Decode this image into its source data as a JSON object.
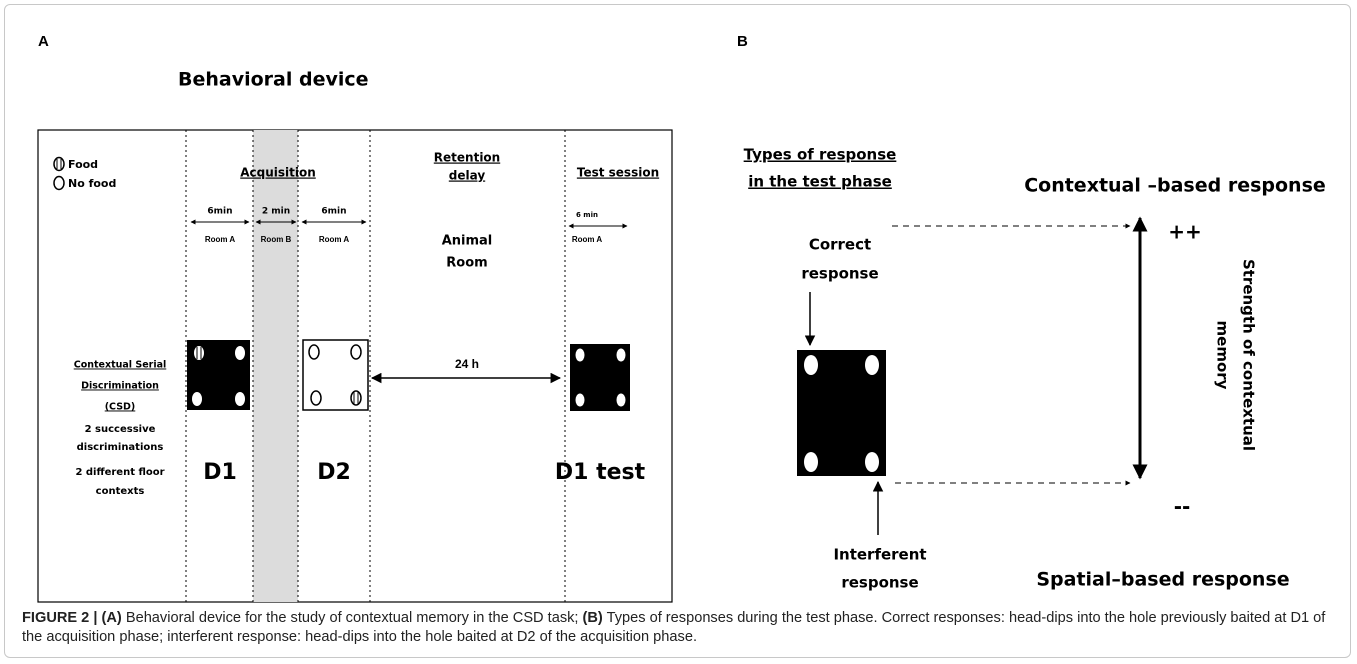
{
  "panel_a": {
    "label": "A",
    "title": "Behavioral device",
    "legend": [
      "Food",
      "No food"
    ],
    "acquisition": "Acquisition",
    "retention": [
      "Retention",
      "delay"
    ],
    "test_session": "Test session",
    "durations": [
      {
        "time": "6min",
        "room": "Room A"
      },
      {
        "time": "2 min",
        "room": "Room B"
      },
      {
        "time": "6min",
        "room": "Room A"
      },
      {
        "time": "6 min",
        "room": "Room A"
      }
    ],
    "animal_room": [
      "Animal",
      "Room"
    ],
    "delay": "24 h",
    "method": [
      "Contextual Serial",
      "Discrimination",
      "(CSD)"
    ],
    "notes": [
      "2 successive",
      "discriminations",
      "2 different floor",
      "contexts"
    ],
    "days": [
      "D1",
      "D2",
      "D1 test"
    ]
  },
  "panel_b": {
    "label": "B",
    "heading": [
      "Types of response",
      "in the test phase"
    ],
    "top_response": "Contextual –based response",
    "bottom_response": "Spatial–based response",
    "correct": [
      "Correct",
      "response"
    ],
    "interferent": [
      "Interferent",
      "response"
    ],
    "plus": "++",
    "minus": "--",
    "axis": [
      "Strength of contextual",
      "memory"
    ]
  },
  "caption": {
    "label": "FIGURE 2 |",
    "a_tag": "(A)",
    "a_text": "Behavioral device for the study of contextual memory in the CSD task;",
    "b_tag": "(B)",
    "b_text": "Types of responses during the test phase. Correct responses: head-dips into the hole previously baited at D1 of the acquisition phase; interferent response: head-dips into the hole baited at D2 of the acquisition phase."
  }
}
